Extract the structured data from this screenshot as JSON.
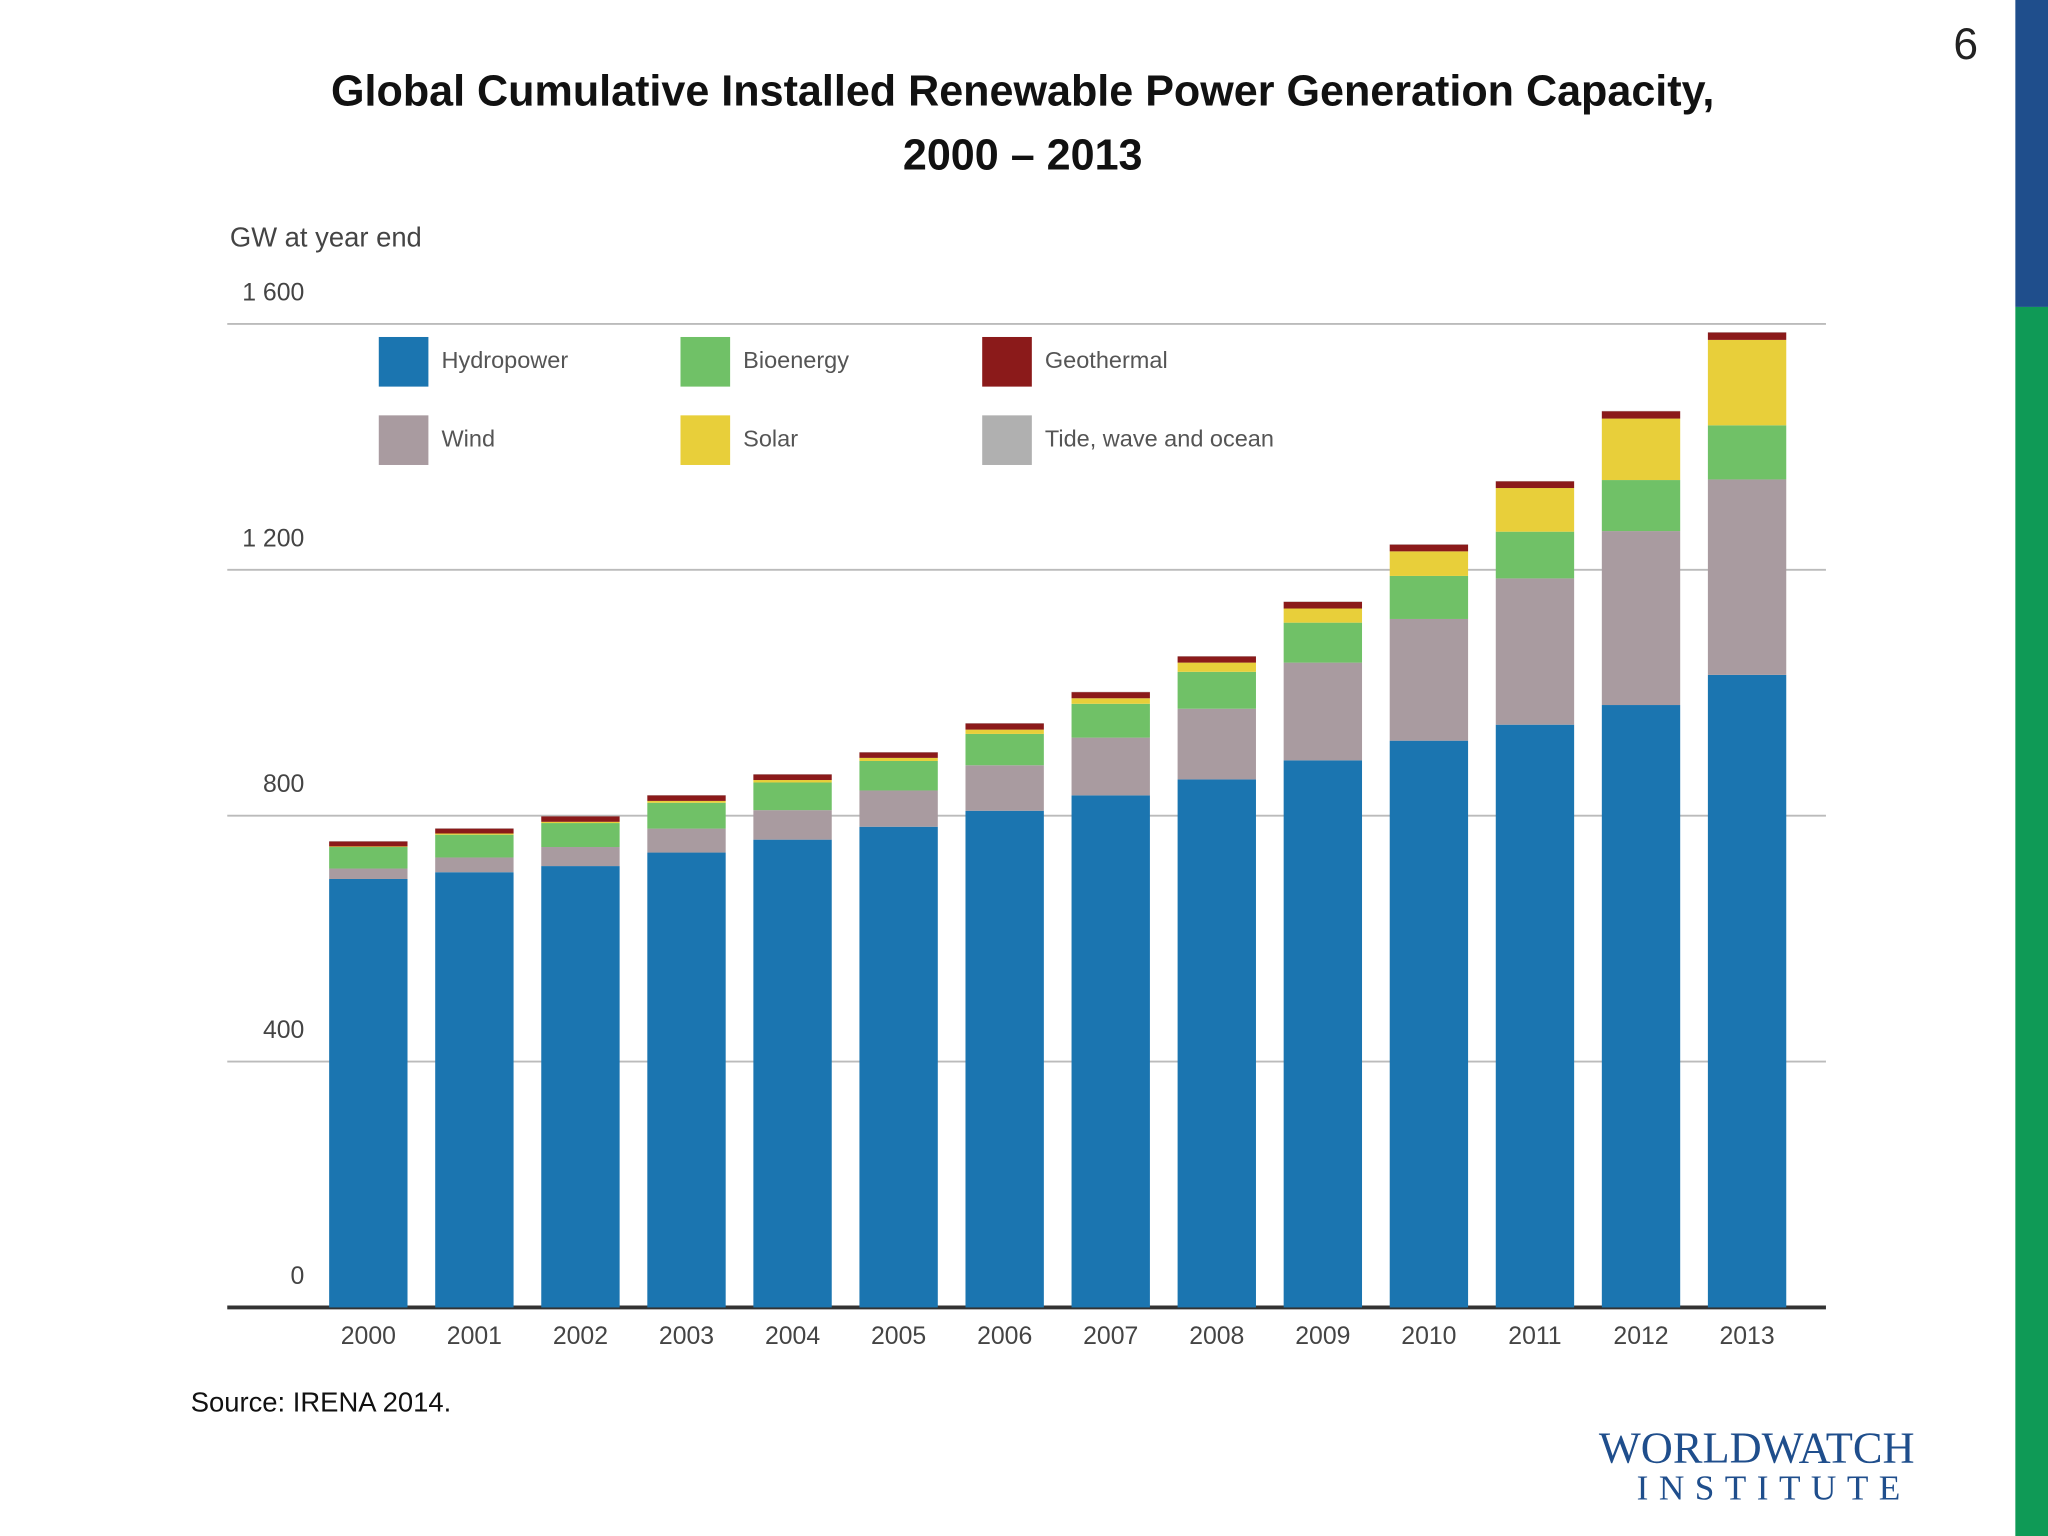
{
  "page_number": "6",
  "chart_data": {
    "type": "stacked_bar",
    "title": "Global Cumulative Installed Renewable Power Generation Capacity,",
    "subtitle": "2000 – 2013",
    "y_label": "GW at year end",
    "categories": [
      "2000",
      "2001",
      "2002",
      "2003",
      "2004",
      "2005",
      "2006",
      "2007",
      "2008",
      "2009",
      "2010",
      "2011",
      "2012",
      "2013"
    ],
    "series": [
      {
        "name": "Hydropower",
        "color": "#1b75b0",
        "values": [
          697,
          708,
          718,
          740,
          761,
          782,
          808,
          833,
          859,
          890,
          922,
          948,
          980,
          1029
        ]
      },
      {
        "name": "Wind",
        "color": "#a99ba0",
        "values": [
          17,
          24,
          31,
          39,
          48,
          59,
          74,
          94,
          115,
          159,
          198,
          238,
          283,
          318
        ]
      },
      {
        "name": "Bioenergy",
        "color": "#70c167",
        "values": [
          35,
          37,
          39,
          42,
          45,
          48,
          51,
          55,
          60,
          65,
          70,
          76,
          83,
          88
        ]
      },
      {
        "name": "Solar",
        "color": "#e8cf3a",
        "values": [
          1,
          2,
          2,
          3,
          4,
          5,
          7,
          9,
          15,
          23,
          40,
          71,
          100,
          139
        ]
      },
      {
        "name": "Geothermal",
        "color": "#8b1a1a",
        "values": [
          8,
          8,
          9,
          9,
          9,
          9,
          10,
          10,
          10,
          11,
          11,
          11,
          12,
          12
        ]
      },
      {
        "name": "Tide, wave and ocean",
        "color": "#b0b0b0",
        "values": [
          0.5,
          0.5,
          0.5,
          0.5,
          0.5,
          0.5,
          0.5,
          0.5,
          0.5,
          0.5,
          0.5,
          0.5,
          0.5,
          0.5
        ]
      }
    ],
    "ylim": [
      0,
      1600
    ],
    "yticks": [
      0,
      400,
      800,
      {
        "value": 1200,
        "label": "1 200"
      },
      {
        "value": 1600,
        "label": "1 600"
      }
    ],
    "grid": true,
    "source": "Source: IRENA 2014."
  },
  "logo": {
    "line1": "WORLDWATCH",
    "line2": "INSTITUTE"
  }
}
